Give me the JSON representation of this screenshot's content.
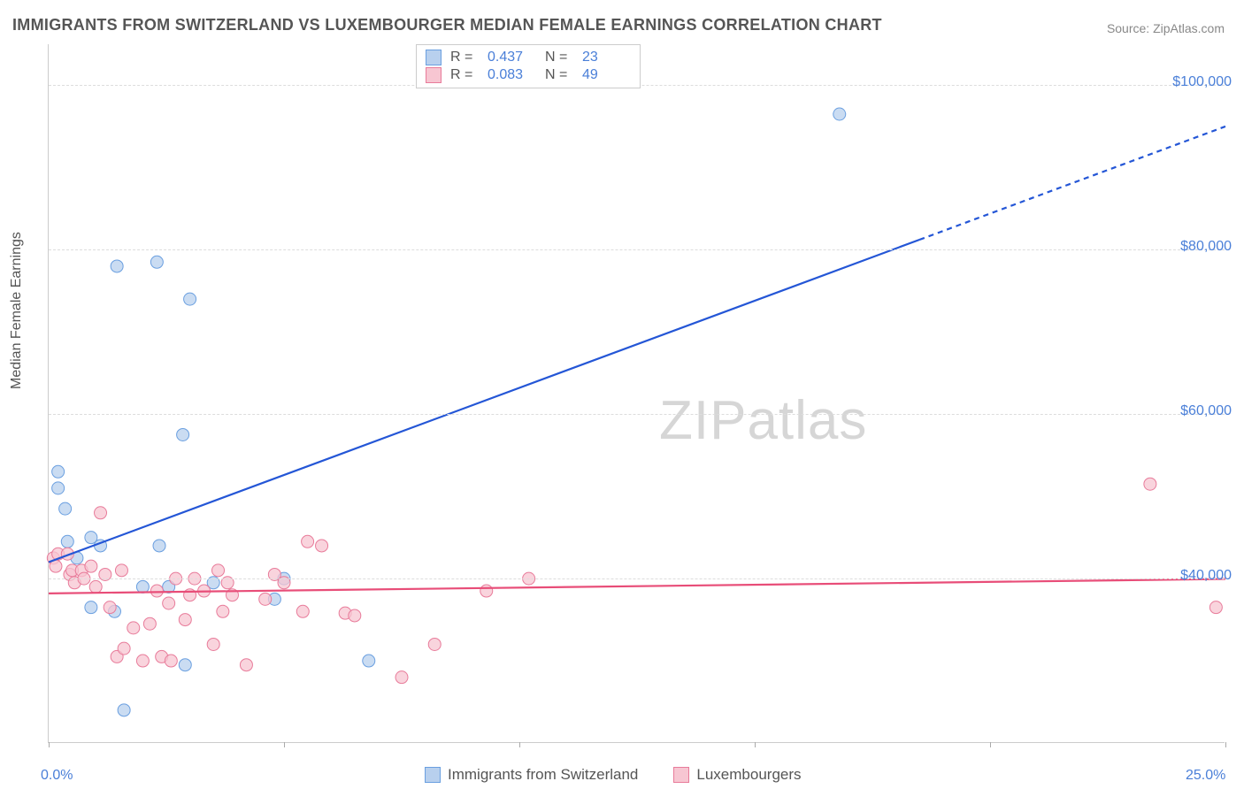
{
  "title": "IMMIGRANTS FROM SWITZERLAND VS LUXEMBOURGER MEDIAN FEMALE EARNINGS CORRELATION CHART",
  "source": "Source: ZipAtlas.com",
  "ylabel": "Median Female Earnings",
  "watermark_a": "ZIP",
  "watermark_b": "atlas",
  "chart": {
    "type": "scatter",
    "x_range": [
      0,
      25
    ],
    "y_range": [
      20000,
      105000
    ],
    "x_ticks": [
      0,
      5,
      10,
      15,
      20,
      25
    ],
    "x_tick_labels": {
      "0": "0.0%",
      "25": "25.0%"
    },
    "y_gridlines": [
      40000,
      60000,
      80000,
      100000
    ],
    "y_tick_labels": {
      "40000": "$40,000",
      "60000": "$60,000",
      "80000": "$80,000",
      "100000": "$100,000"
    },
    "background_color": "#ffffff",
    "grid_color": "#dddddd",
    "axis_color": "#cccccc",
    "tick_label_color": "#4a7fd8",
    "series": [
      {
        "key": "swiss",
        "label": "Immigrants from Switzerland",
        "color_fill": "#b8d0ee",
        "color_stroke": "#6a9fe0",
        "marker_radius": 7,
        "marker_opacity": 0.75,
        "trend": {
          "slope": 2120,
          "intercept": 42000,
          "color": "#2456d6",
          "width": 2.2,
          "dash_after_x": 18.5
        },
        "R": "0.437",
        "N": "23",
        "points": [
          [
            0.2,
            53000
          ],
          [
            0.2,
            51000
          ],
          [
            0.35,
            48500
          ],
          [
            0.4,
            44500
          ],
          [
            0.6,
            42500
          ],
          [
            0.9,
            45000
          ],
          [
            0.9,
            36500
          ],
          [
            1.1,
            44000
          ],
          [
            1.45,
            78000
          ],
          [
            1.4,
            36000
          ],
          [
            1.6,
            24000
          ],
          [
            2.0,
            39000
          ],
          [
            2.3,
            78500
          ],
          [
            2.35,
            44000
          ],
          [
            2.55,
            39000
          ],
          [
            3.0,
            74000
          ],
          [
            2.85,
            57500
          ],
          [
            2.9,
            29500
          ],
          [
            3.5,
            39500
          ],
          [
            4.8,
            37500
          ],
          [
            5.0,
            40000
          ],
          [
            6.8,
            30000
          ],
          [
            16.8,
            96500
          ]
        ]
      },
      {
        "key": "lux",
        "label": "Luxembourgers",
        "color_fill": "#f7c6d2",
        "color_stroke": "#e87b9a",
        "marker_radius": 7,
        "marker_opacity": 0.75,
        "trend": {
          "slope": 70,
          "intercept": 38200,
          "color": "#e84d78",
          "width": 2.2,
          "dash_after_x": 999
        },
        "R": "0.083",
        "N": "49",
        "points": [
          [
            0.1,
            42500
          ],
          [
            0.15,
            41500
          ],
          [
            0.2,
            43000
          ],
          [
            0.4,
            43000
          ],
          [
            0.45,
            40500
          ],
          [
            0.5,
            41000
          ],
          [
            0.55,
            39500
          ],
          [
            0.7,
            41000
          ],
          [
            0.75,
            40000
          ],
          [
            0.9,
            41500
          ],
          [
            1.0,
            39000
          ],
          [
            1.1,
            48000
          ],
          [
            1.2,
            40500
          ],
          [
            1.3,
            36500
          ],
          [
            1.45,
            30500
          ],
          [
            1.55,
            41000
          ],
          [
            1.6,
            31500
          ],
          [
            1.8,
            34000
          ],
          [
            2.0,
            30000
          ],
          [
            2.15,
            34500
          ],
          [
            2.3,
            38500
          ],
          [
            2.4,
            30500
          ],
          [
            2.55,
            37000
          ],
          [
            2.6,
            30000
          ],
          [
            2.7,
            40000
          ],
          [
            2.9,
            35000
          ],
          [
            3.0,
            38000
          ],
          [
            3.1,
            40000
          ],
          [
            3.3,
            38500
          ],
          [
            3.5,
            32000
          ],
          [
            3.6,
            41000
          ],
          [
            3.7,
            36000
          ],
          [
            3.8,
            39500
          ],
          [
            3.9,
            38000
          ],
          [
            4.2,
            29500
          ],
          [
            4.6,
            37500
          ],
          [
            4.8,
            40500
          ],
          [
            5.0,
            39500
          ],
          [
            5.4,
            36000
          ],
          [
            5.5,
            44500
          ],
          [
            5.8,
            44000
          ],
          [
            6.3,
            35800
          ],
          [
            6.5,
            35500
          ],
          [
            7.5,
            28000
          ],
          [
            8.2,
            32000
          ],
          [
            9.3,
            38500
          ],
          [
            10.2,
            40000
          ],
          [
            23.4,
            51500
          ],
          [
            24.8,
            36500
          ]
        ]
      }
    ]
  },
  "legend_top": {
    "r_label": "R =",
    "n_label": "N ="
  }
}
